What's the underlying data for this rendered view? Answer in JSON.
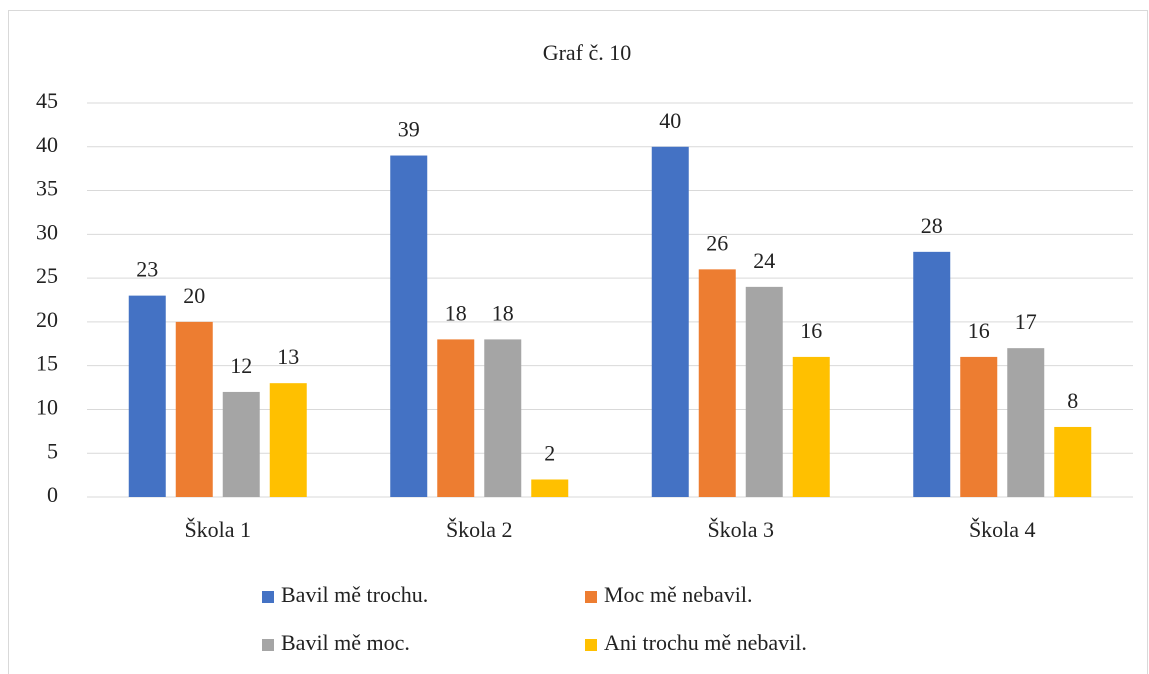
{
  "chart_data": {
    "type": "bar",
    "title": "Graf č. 10",
    "categories": [
      "Škola 1",
      "Škola 2",
      "Škola 3",
      "Škola 4"
    ],
    "series": [
      {
        "name": "Bavil mě trochu.",
        "color": "#4472c4",
        "values": [
          23,
          39,
          40,
          28
        ]
      },
      {
        "name": "Moc mě nebavil.",
        "color": "#ed7d31",
        "values": [
          20,
          18,
          26,
          16
        ]
      },
      {
        "name": "Bavil mě moc.",
        "color": "#a5a5a5",
        "values": [
          12,
          18,
          24,
          17
        ]
      },
      {
        "name": "Ani trochu mě nebavil.",
        "color": "#ffc000",
        "values": [
          13,
          2,
          16,
          8
        ]
      }
    ],
    "ylim": [
      0,
      45
    ],
    "yticks": [
      0,
      5,
      10,
      15,
      20,
      25,
      30,
      35,
      40,
      45
    ],
    "grid": true,
    "legend": "bottom"
  }
}
